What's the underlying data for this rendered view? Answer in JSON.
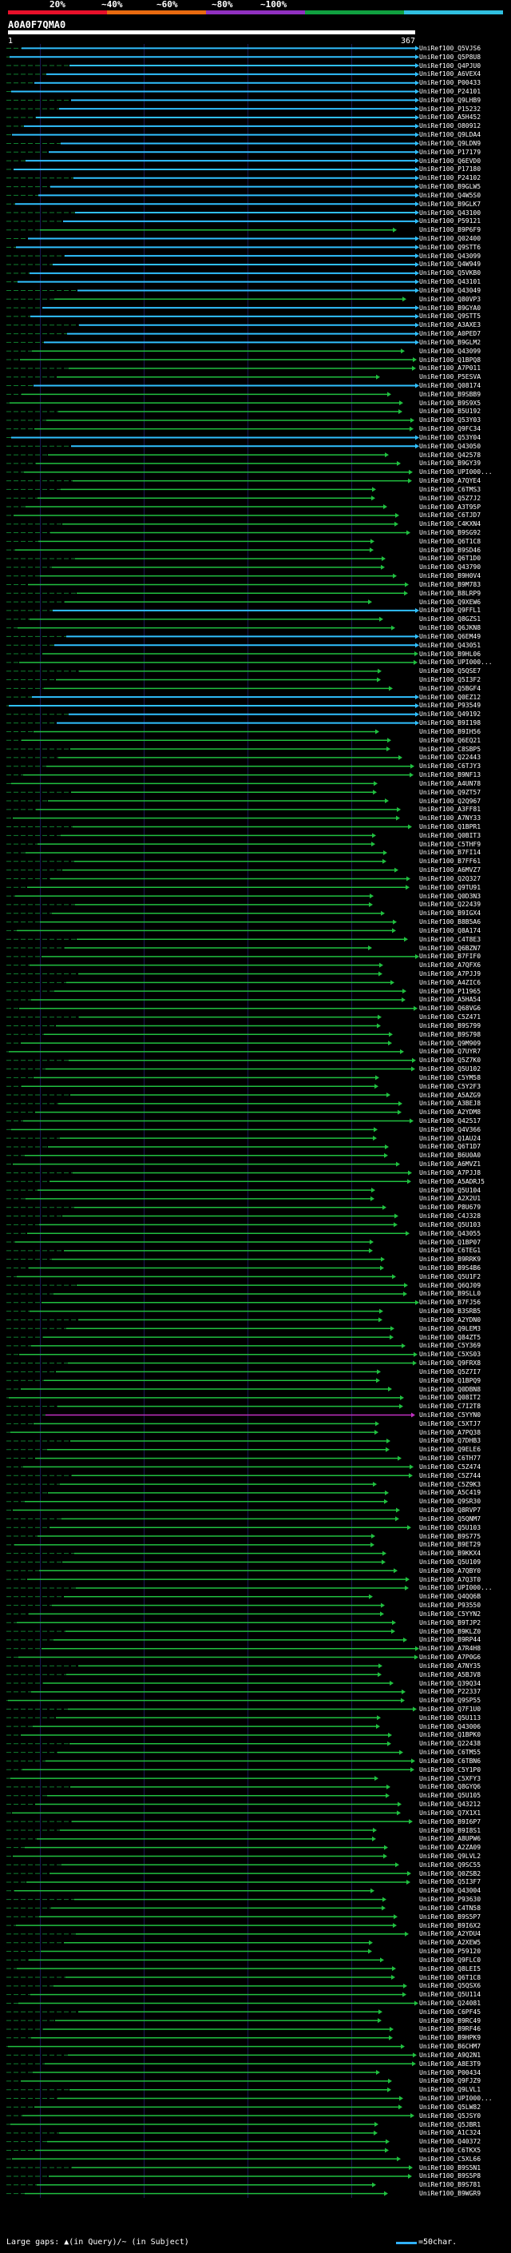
{
  "scale": {
    "ticks": [
      "20%",
      "~40%",
      "~60%",
      "~80%",
      "~100%"
    ],
    "colors": [
      "#e8102a",
      "#e86a10",
      "#9030c0",
      "#10a040",
      "#30c0e0"
    ]
  },
  "query": {
    "id": "A0A0F7QMA0",
    "start": "1",
    "end": "367"
  },
  "colors": {
    "high": "#30c0ff",
    "mid": "#20c040",
    "low": "#c030c0"
  },
  "hits": [
    {
      "id": "UniRef100_Q5VJS6",
      "c": "high"
    },
    {
      "id": "UniRef100_Q5P8U8",
      "c": "high"
    },
    {
      "id": "UniRef100_Q4PJU0",
      "c": "high"
    },
    {
      "id": "UniRef100_A6VEX4",
      "c": "high"
    },
    {
      "id": "UniRef100_P00433",
      "c": "high"
    },
    {
      "id": "UniRef100_P24101",
      "c": "high"
    },
    {
      "id": "UniRef100_Q9LHB9",
      "c": "high"
    },
    {
      "id": "UniRef100_P15232",
      "c": "high"
    },
    {
      "id": "UniRef100_A5H452",
      "c": "high"
    },
    {
      "id": "UniRef100_O80912",
      "c": "high"
    },
    {
      "id": "UniRef100_Q9LDA4",
      "c": "high"
    },
    {
      "id": "UniRef100_Q9LDN9",
      "c": "high"
    },
    {
      "id": "UniRef100_P17179",
      "c": "high"
    },
    {
      "id": "UniRef100_Q6EVD0",
      "c": "high"
    },
    {
      "id": "UniRef100_P17180",
      "c": "high"
    },
    {
      "id": "UniRef100_P24102",
      "c": "high"
    },
    {
      "id": "UniRef100_B9GLW5",
      "c": "high"
    },
    {
      "id": "UniRef100_Q4W5S0",
      "c": "high"
    },
    {
      "id": "UniRef100_B9GLK7",
      "c": "high"
    },
    {
      "id": "UniRef100_Q43100",
      "c": "high"
    },
    {
      "id": "UniRef100_P59121",
      "c": "high"
    },
    {
      "id": "UniRef100_B9P6F9",
      "c": "mid"
    },
    {
      "id": "UniRef100_Q02400",
      "c": "high"
    },
    {
      "id": "UniRef100_Q9STT6",
      "c": "high"
    },
    {
      "id": "UniRef100_Q43099",
      "c": "high"
    },
    {
      "id": "UniRef100_Q4W949",
      "c": "high"
    },
    {
      "id": "UniRef100_Q5VKB0",
      "c": "high"
    },
    {
      "id": "UniRef100_Q43101",
      "c": "high"
    },
    {
      "id": "UniRef100_Q43049",
      "c": "high"
    },
    {
      "id": "UniRef100_Q80VP3",
      "c": "mid"
    },
    {
      "id": "UniRef100_B9GYA0",
      "c": "high"
    },
    {
      "id": "UniRef100_Q9STT5",
      "c": "high"
    },
    {
      "id": "UniRef100_A3AXE3",
      "c": "high"
    },
    {
      "id": "UniRef100_A0PED7",
      "c": "high"
    },
    {
      "id": "UniRef100_B9GLM2",
      "c": "high"
    },
    {
      "id": "UniRef100_Q43099",
      "c": "mid"
    },
    {
      "id": "UniRef100_Q1BPQ8",
      "c": "mid"
    },
    {
      "id": "UniRef100_A7P011",
      "c": "mid"
    },
    {
      "id": "UniRef100_P5ESVA",
      "c": "mid"
    },
    {
      "id": "UniRef100_Q08174",
      "c": "high"
    },
    {
      "id": "UniRef100_B9SBB9",
      "c": "mid"
    },
    {
      "id": "UniRef100_B9S9X5",
      "c": "mid"
    },
    {
      "id": "UniRef100_B5U192",
      "c": "mid"
    },
    {
      "id": "UniRef100_Q53Y03",
      "c": "mid"
    },
    {
      "id": "UniRef100_Q9FC34",
      "c": "mid"
    },
    {
      "id": "UniRef100_Q53Y04",
      "c": "high"
    },
    {
      "id": "UniRef100_Q43050",
      "c": "high"
    },
    {
      "id": "UniRef100_Q42578",
      "c": "mid"
    },
    {
      "id": "UniRef100_B9GY39",
      "c": "mid"
    },
    {
      "id": "UniRef100_UPI000...",
      "c": "mid"
    },
    {
      "id": "UniRef100_A7QYE4",
      "c": "mid"
    },
    {
      "id": "UniRef100_C6TMS3",
      "c": "mid"
    },
    {
      "id": "UniRef100_Q5Z7J2",
      "c": "mid"
    },
    {
      "id": "UniRef100_A3T95P",
      "c": "mid"
    },
    {
      "id": "UniRef100_C6TJD7",
      "c": "mid"
    },
    {
      "id": "UniRef100_C4KXN4",
      "c": "mid"
    },
    {
      "id": "UniRef100_B9SG92",
      "c": "mid"
    },
    {
      "id": "UniRef100_Q6T1C8",
      "c": "mid"
    },
    {
      "id": "UniRef100_B9SD46",
      "c": "mid"
    },
    {
      "id": "UniRef100_Q6T1D0",
      "c": "mid"
    },
    {
      "id": "UniRef100_Q43790",
      "c": "mid"
    },
    {
      "id": "UniRef100_B9H0V4",
      "c": "mid"
    },
    {
      "id": "UniRef100_B9M783",
      "c": "mid"
    },
    {
      "id": "UniRef100_B8LRP9",
      "c": "mid"
    },
    {
      "id": "UniRef100_Q9XEW6",
      "c": "mid"
    },
    {
      "id": "UniRef100_Q9FFL1",
      "c": "high"
    },
    {
      "id": "UniRef100_Q8GZS1",
      "c": "mid"
    },
    {
      "id": "UniRef100_Q6JKN8",
      "c": "mid"
    },
    {
      "id": "UniRef100_Q6EM49",
      "c": "high"
    },
    {
      "id": "UniRef100_Q43051",
      "c": "high"
    },
    {
      "id": "UniRef100_B9HL06",
      "c": "mid"
    },
    {
      "id": "UniRef100_UPI000...",
      "c": "mid"
    },
    {
      "id": "UniRef100_Q5QSE7",
      "c": "mid"
    },
    {
      "id": "UniRef100_Q5I3F2",
      "c": "mid"
    },
    {
      "id": "UniRef100_Q5BGF4",
      "c": "mid"
    },
    {
      "id": "UniRef100_Q0EZ12",
      "c": "high"
    },
    {
      "id": "UniRef100_P93549",
      "c": "high"
    },
    {
      "id": "UniRef100_Q49192",
      "c": "high"
    },
    {
      "id": "UniRef100_B9I198",
      "c": "high"
    },
    {
      "id": "UniRef100_B9IH56",
      "c": "mid"
    },
    {
      "id": "UniRef100_Q6EQ21",
      "c": "mid"
    },
    {
      "id": "UniRef100_C8SBP5",
      "c": "mid"
    },
    {
      "id": "UniRef100_Q22443",
      "c": "mid"
    },
    {
      "id": "UniRef100_C6TJY3",
      "c": "mid"
    },
    {
      "id": "UniRef100_B9NF13",
      "c": "mid"
    },
    {
      "id": "UniRef100_A4UN78",
      "c": "mid"
    },
    {
      "id": "UniRef100_Q9ZT57",
      "c": "mid"
    },
    {
      "id": "UniRef100_Q2Q967",
      "c": "mid"
    },
    {
      "id": "UniRef100_A3FF81",
      "c": "mid"
    },
    {
      "id": "UniRef100_A7NY33",
      "c": "mid"
    },
    {
      "id": "UniRef100_Q1BPR1",
      "c": "mid"
    },
    {
      "id": "UniRef100_Q0BIT3",
      "c": "mid"
    },
    {
      "id": "UniRef100_C5THF9",
      "c": "mid"
    },
    {
      "id": "UniRef100_B7FI14",
      "c": "mid"
    },
    {
      "id": "UniRef100_B7FF61",
      "c": "mid"
    },
    {
      "id": "UniRef100_A6MVZ7",
      "c": "mid"
    },
    {
      "id": "UniRef100_Q2Q327",
      "c": "mid"
    },
    {
      "id": "UniRef100_Q9TU91",
      "c": "mid"
    },
    {
      "id": "UniRef100_Q0D3N3",
      "c": "mid"
    },
    {
      "id": "UniRef100_Q22439",
      "c": "mid"
    },
    {
      "id": "UniRef100_B9IGX4",
      "c": "mid"
    },
    {
      "id": "UniRef100_B8B5A6",
      "c": "mid"
    },
    {
      "id": "UniRef100_Q8A174",
      "c": "mid"
    },
    {
      "id": "UniRef100_C4T8E3",
      "c": "mid"
    },
    {
      "id": "UniRef100_Q6BZN7",
      "c": "mid"
    },
    {
      "id": "UniRef100_B7FIF0",
      "c": "mid"
    },
    {
      "id": "UniRef100_A7QFX6",
      "c": "mid"
    },
    {
      "id": "UniRef100_A7PJJ9",
      "c": "mid"
    },
    {
      "id": "UniRef100_A4ZIC6",
      "c": "mid"
    },
    {
      "id": "UniRef100_P11965",
      "c": "mid"
    },
    {
      "id": "UniRef100_A5HA54",
      "c": "mid"
    },
    {
      "id": "UniRef100_Q68VG6",
      "c": "mid"
    },
    {
      "id": "UniRef100_C5Z471",
      "c": "mid"
    },
    {
      "id": "UniRef100_B9S799",
      "c": "mid"
    },
    {
      "id": "UniRef100_B9S798",
      "c": "mid"
    },
    {
      "id": "UniRef100_Q9M909",
      "c": "mid"
    },
    {
      "id": "UniRef100_Q7UYR7",
      "c": "mid"
    },
    {
      "id": "UniRef100_Q5Z7K0",
      "c": "mid"
    },
    {
      "id": "UniRef100_Q5U102",
      "c": "mid"
    },
    {
      "id": "UniRef100_C5YM58",
      "c": "mid"
    },
    {
      "id": "UniRef100_C5Y2F3",
      "c": "mid"
    },
    {
      "id": "UniRef100_A5AZG9",
      "c": "mid"
    },
    {
      "id": "UniRef100_A3BEJ8",
      "c": "mid"
    },
    {
      "id": "UniRef100_A2YDM8",
      "c": "mid"
    },
    {
      "id": "UniRef100_Q42517",
      "c": "mid"
    },
    {
      "id": "UniRef100_Q4V366",
      "c": "mid"
    },
    {
      "id": "UniRef100_Q1AU24",
      "c": "mid"
    },
    {
      "id": "UniRef100_Q6T1D7",
      "c": "mid"
    },
    {
      "id": "UniRef100_B6U0A0",
      "c": "mid"
    },
    {
      "id": "UniRef100_A6MVZ1",
      "c": "mid"
    },
    {
      "id": "UniRef100_A7PJJ8",
      "c": "mid"
    },
    {
      "id": "UniRef100_A5ADRJ5",
      "c": "mid"
    },
    {
      "id": "UniRef100_Q5U104",
      "c": "mid"
    },
    {
      "id": "UniRef100_A2X2U1",
      "c": "mid"
    },
    {
      "id": "UniRef100_P8U679",
      "c": "mid"
    },
    {
      "id": "UniRef100_C4J328",
      "c": "mid"
    },
    {
      "id": "UniRef100_Q5U103",
      "c": "mid"
    },
    {
      "id": "UniRef100_Q43055",
      "c": "mid"
    },
    {
      "id": "UniRef100_Q1BP07",
      "c": "mid"
    },
    {
      "id": "UniRef100_C6TEG1",
      "c": "mid"
    },
    {
      "id": "UniRef100_B9RRK9",
      "c": "mid"
    },
    {
      "id": "UniRef100_B9S4B6",
      "c": "mid"
    },
    {
      "id": "UniRef100_Q5U1F2",
      "c": "mid"
    },
    {
      "id": "UniRef100_Q6QJ09",
      "c": "mid"
    },
    {
      "id": "UniRef100_B9SLL0",
      "c": "mid"
    },
    {
      "id": "UniRef100_B7FJ56",
      "c": "mid"
    },
    {
      "id": "UniRef100_B3SRB5",
      "c": "mid"
    },
    {
      "id": "UniRef100_A2YDN0",
      "c": "mid"
    },
    {
      "id": "UniRef100_Q9LEM3",
      "c": "mid"
    },
    {
      "id": "UniRef100_Q84ZT5",
      "c": "mid"
    },
    {
      "id": "UniRef100_C5Y369",
      "c": "mid"
    },
    {
      "id": "UniRef100_C5XS03",
      "c": "mid"
    },
    {
      "id": "UniRef100_Q9FRX8",
      "c": "mid"
    },
    {
      "id": "UniRef100_Q5Z7I7",
      "c": "mid"
    },
    {
      "id": "UniRef100_Q1BPQ9",
      "c": "mid"
    },
    {
      "id": "UniRef100_Q0DBN8",
      "c": "mid"
    },
    {
      "id": "UniRef100_Q08IT2",
      "c": "mid"
    },
    {
      "id": "UniRef100_C7I2T8",
      "c": "mid"
    },
    {
      "id": "UniRef100_C5YYN0",
      "c": "low"
    },
    {
      "id": "UniRef100_C5XTJ7",
      "c": "mid"
    },
    {
      "id": "UniRef100_A7PQ38",
      "c": "mid"
    },
    {
      "id": "UniRef100_Q7DHB3",
      "c": "mid"
    },
    {
      "id": "UniRef100_Q9ELE6",
      "c": "mid"
    },
    {
      "id": "UniRef100_C6TH77",
      "c": "mid"
    },
    {
      "id": "UniRef100_C5Z474",
      "c": "mid"
    },
    {
      "id": "UniRef100_C5Z744",
      "c": "mid"
    },
    {
      "id": "UniRef100_C5Z9K3",
      "c": "mid"
    },
    {
      "id": "UniRef100_A5C419",
      "c": "mid"
    },
    {
      "id": "UniRef100_Q9SR30",
      "c": "mid"
    },
    {
      "id": "UniRef100_Q8RVP7",
      "c": "mid"
    },
    {
      "id": "UniRef100_Q5QNM7",
      "c": "mid"
    },
    {
      "id": "UniRef100_Q5U103",
      "c": "mid"
    },
    {
      "id": "UniRef100_B9S775",
      "c": "mid"
    },
    {
      "id": "UniRef100_B9ET29",
      "c": "mid"
    },
    {
      "id": "UniRef100_B9KKX4",
      "c": "mid"
    },
    {
      "id": "UniRef100_Q5U109",
      "c": "mid"
    },
    {
      "id": "UniRef100_A7QBY0",
      "c": "mid"
    },
    {
      "id": "UniRef100_A7Q3T0",
      "c": "mid"
    },
    {
      "id": "UniRef100_UPI000...",
      "c": "mid"
    },
    {
      "id": "UniRef100_Q4QQ6B",
      "c": "mid"
    },
    {
      "id": "UniRef100_P93550",
      "c": "mid"
    },
    {
      "id": "UniRef100_C5YYN2",
      "c": "mid"
    },
    {
      "id": "UniRef100_B9TJP2",
      "c": "mid"
    },
    {
      "id": "UniRef100_B9KLZ0",
      "c": "mid"
    },
    {
      "id": "UniRef100_B9RP44",
      "c": "mid"
    },
    {
      "id": "UniRef100_A7R4H8",
      "c": "mid"
    },
    {
      "id": "UniRef100_A7P0G6",
      "c": "mid"
    },
    {
      "id": "UniRef100_A7NY35",
      "c": "mid"
    },
    {
      "id": "UniRef100_A5BJV8",
      "c": "mid"
    },
    {
      "id": "UniRef100_Q39Q34",
      "c": "mid"
    },
    {
      "id": "UniRef100_P22337",
      "c": "mid"
    },
    {
      "id": "UniRef100_Q9SP55",
      "c": "mid"
    },
    {
      "id": "UniRef100_Q7F1U0",
      "c": "mid"
    },
    {
      "id": "UniRef100_Q5U113",
      "c": "mid"
    },
    {
      "id": "UniRef100_Q43006",
      "c": "mid"
    },
    {
      "id": "UniRef100_Q1BPK0",
      "c": "mid"
    },
    {
      "id": "UniRef100_Q22438",
      "c": "mid"
    },
    {
      "id": "UniRef100_C6TM55",
      "c": "mid"
    },
    {
      "id": "UniRef100_C6TBN6",
      "c": "mid"
    },
    {
      "id": "UniRef100_C5Y1P0",
      "c": "mid"
    },
    {
      "id": "UniRef100_C5XFY3",
      "c": "mid"
    },
    {
      "id": "UniRef100_Q8GYQ6",
      "c": "mid"
    },
    {
      "id": "UniRef100_Q5U105",
      "c": "mid"
    },
    {
      "id": "UniRef100_Q43212",
      "c": "mid"
    },
    {
      "id": "UniRef100_Q7X1X1",
      "c": "mid"
    },
    {
      "id": "UniRef100_B9I6P7",
      "c": "mid"
    },
    {
      "id": "UniRef100_B9I8S1",
      "c": "mid"
    },
    {
      "id": "UniRef100_A8UPW6",
      "c": "mid"
    },
    {
      "id": "UniRef100_A2ZA09",
      "c": "mid"
    },
    {
      "id": "UniRef100_Q9LVL2",
      "c": "mid"
    },
    {
      "id": "UniRef100_Q9SC55",
      "c": "mid"
    },
    {
      "id": "UniRef100_Q0ZSB2",
      "c": "mid"
    },
    {
      "id": "UniRef100_Q5I3F7",
      "c": "mid"
    },
    {
      "id": "UniRef100_Q43004",
      "c": "mid"
    },
    {
      "id": "UniRef100_P93630",
      "c": "mid"
    },
    {
      "id": "UniRef100_C4TN58",
      "c": "mid"
    },
    {
      "id": "UniRef100_B9S5P7",
      "c": "mid"
    },
    {
      "id": "UniRef100_B9I6X2",
      "c": "mid"
    },
    {
      "id": "UniRef100_A2YDU4",
      "c": "mid"
    },
    {
      "id": "UniRef100_A2XEW5",
      "c": "mid"
    },
    {
      "id": "UniRef100_P59120",
      "c": "mid"
    },
    {
      "id": "UniRef100_Q9FLC0",
      "c": "mid"
    },
    {
      "id": "UniRef100_Q8LEI5",
      "c": "mid"
    },
    {
      "id": "UniRef100_Q6T1C8",
      "c": "mid"
    },
    {
      "id": "UniRef100_Q5QSX6",
      "c": "mid"
    },
    {
      "id": "UniRef100_Q5U114",
      "c": "mid"
    },
    {
      "id": "UniRef100_Q24081",
      "c": "mid"
    },
    {
      "id": "UniRef100_C6PF45",
      "c": "mid"
    },
    {
      "id": "UniRef100_B9RC49",
      "c": "mid"
    },
    {
      "id": "UniRef100_B9RF46",
      "c": "mid"
    },
    {
      "id": "UniRef100_B9HPK9",
      "c": "mid"
    },
    {
      "id": "UniRef100_B6CHM7",
      "c": "mid"
    },
    {
      "id": "UniRef100_A9Q2N1",
      "c": "mid"
    },
    {
      "id": "UniRef100_A8E3T9",
      "c": "mid"
    },
    {
      "id": "UniRef100_P00434",
      "c": "mid"
    },
    {
      "id": "UniRef100_Q9FJZ9",
      "c": "mid"
    },
    {
      "id": "UniRef100_Q9LVL1",
      "c": "mid"
    },
    {
      "id": "UniRef100_UPI000...",
      "c": "mid"
    },
    {
      "id": "UniRef100_Q5LW82",
      "c": "mid"
    },
    {
      "id": "UniRef100_Q5JSY0",
      "c": "mid"
    },
    {
      "id": "UniRef100_Q5JBR1",
      "c": "mid"
    },
    {
      "id": "UniRef100_A1C324",
      "c": "mid"
    },
    {
      "id": "UniRef100_Q40372",
      "c": "mid"
    },
    {
      "id": "UniRef100_C6TKX5",
      "c": "mid"
    },
    {
      "id": "UniRef100_C5XL66",
      "c": "mid"
    },
    {
      "id": "UniRef100_B9S5N1",
      "c": "mid"
    },
    {
      "id": "UniRef100_B9S5P8",
      "c": "mid"
    },
    {
      "id": "UniRef100_B9S781",
      "c": "mid"
    },
    {
      "id": "UniRef100_B9WGR9",
      "c": "mid"
    }
  ],
  "footer": {
    "gaps_text": "Large gaps: ▲(in Query)/~ (in Subject)",
    "legend_text": "=50char."
  }
}
